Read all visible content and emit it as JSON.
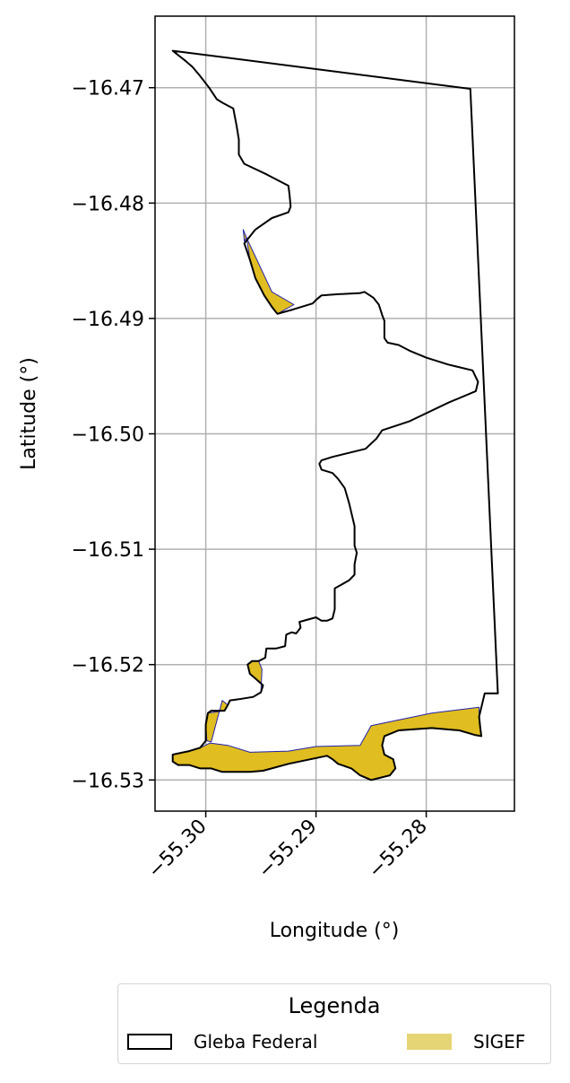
{
  "chart_data": {
    "type": "map",
    "title": "",
    "xlabel": "Longitude (°)",
    "ylabel": "Latitude (°)",
    "xlim": [
      -55.3046,
      -55.272
    ],
    "ylim": [
      -16.5327,
      -16.4638
    ],
    "x_ticks": [
      {
        "value": -55.3,
        "label": "−55.30"
      },
      {
        "value": -55.29,
        "label": "−55.29"
      },
      {
        "value": -55.28,
        "label": "−55.28"
      }
    ],
    "y_ticks": [
      {
        "value": -16.47,
        "label": "−16.47"
      },
      {
        "value": -16.48,
        "label": "−16.48"
      },
      {
        "value": -16.49,
        "label": "−16.49"
      },
      {
        "value": -16.5,
        "label": "−16.50"
      },
      {
        "value": -16.51,
        "label": "−16.51"
      },
      {
        "value": -16.52,
        "label": "−16.52"
      },
      {
        "value": -16.53,
        "label": "−16.53"
      }
    ],
    "grid": true,
    "legend": {
      "title": "Legenda",
      "placement": "bottom",
      "entries": [
        {
          "label": "Gleba Federal",
          "style": "outline",
          "color": "#000000"
        },
        {
          "label": "SIGEF",
          "style": "fill",
          "color": "#e6d574"
        }
      ]
    },
    "layers": [
      {
        "name": "Gleba Federal",
        "kind": "outline",
        "stroke": "#000000",
        "coordinates": [
          [
            -55.303,
            -16.4668
          ],
          [
            -55.276,
            -16.4701
          ],
          [
            -55.2735,
            -16.5225
          ],
          [
            -55.2747,
            -16.5225
          ],
          [
            -55.275,
            -16.5237
          ],
          [
            -55.2752,
            -16.5245
          ],
          [
            -55.2751,
            -16.5255
          ],
          [
            -55.275,
            -16.5262
          ],
          [
            -55.2756,
            -16.5261
          ],
          [
            -55.277,
            -16.5257
          ],
          [
            -55.2795,
            -16.5255
          ],
          [
            -55.2825,
            -16.5257
          ],
          [
            -55.2838,
            -16.5262
          ],
          [
            -55.284,
            -16.527
          ],
          [
            -55.2838,
            -16.5278
          ],
          [
            -55.283,
            -16.5282
          ],
          [
            -55.2828,
            -16.529
          ],
          [
            -55.2833,
            -16.5296
          ],
          [
            -55.285,
            -16.53
          ],
          [
            -55.286,
            -16.5296
          ],
          [
            -55.2868,
            -16.529
          ],
          [
            -55.288,
            -16.5286
          ],
          [
            -55.2885,
            -16.5282
          ],
          [
            -55.289,
            -16.5279
          ],
          [
            -55.2925,
            -16.5286
          ],
          [
            -55.2948,
            -16.5292
          ],
          [
            -55.296,
            -16.5293
          ],
          [
            -55.2985,
            -16.5293
          ],
          [
            -55.2995,
            -16.529
          ],
          [
            -55.3005,
            -16.529
          ],
          [
            -55.3015,
            -16.5287
          ],
          [
            -55.3025,
            -16.5287
          ],
          [
            -55.303,
            -16.5284
          ],
          [
            -55.303,
            -16.5278
          ],
          [
            -55.302,
            -16.5276
          ],
          [
            -55.3015,
            -16.5275
          ],
          [
            -55.3005,
            -16.5272
          ],
          [
            -55.3,
            -16.5266
          ],
          [
            -55.3,
            -16.5252
          ],
          [
            -55.2998,
            -16.5242
          ],
          [
            -55.2995,
            -16.524
          ],
          [
            -55.2983,
            -16.524
          ],
          [
            -55.298,
            -16.5235
          ],
          [
            -55.2978,
            -16.5231
          ],
          [
            -55.297,
            -16.523
          ],
          [
            -55.2957,
            -16.5228
          ],
          [
            -55.295,
            -16.5224
          ],
          [
            -55.2948,
            -16.5218
          ],
          [
            -55.2955,
            -16.5212
          ],
          [
            -55.296,
            -16.5208
          ],
          [
            -55.2962,
            -16.52
          ],
          [
            -55.2958,
            -16.5197
          ],
          [
            -55.2952,
            -16.5197
          ],
          [
            -55.2946,
            -16.5194
          ],
          [
            -55.2945,
            -16.5186
          ],
          [
            -55.2936,
            -16.5186
          ],
          [
            -55.2928,
            -16.5184
          ],
          [
            -55.2927,
            -16.5174
          ],
          [
            -55.2922,
            -16.5172
          ],
          [
            -55.2918,
            -16.5173
          ],
          [
            -55.2914,
            -16.5168
          ],
          [
            -55.2915,
            -16.5163
          ],
          [
            -55.29,
            -16.5159
          ],
          [
            -55.2895,
            -16.5162
          ],
          [
            -55.289,
            -16.5162
          ],
          [
            -55.2885,
            -16.516
          ],
          [
            -55.2883,
            -16.5152
          ],
          [
            -55.2883,
            -16.5134
          ],
          [
            -55.287,
            -16.5127
          ],
          [
            -55.2865,
            -16.5122
          ],
          [
            -55.2865,
            -16.5113
          ],
          [
            -55.2863,
            -16.5103
          ],
          [
            -55.2865,
            -16.5097
          ],
          [
            -55.2865,
            -16.508
          ],
          [
            -55.287,
            -16.506
          ],
          [
            -55.2874,
            -16.5047
          ],
          [
            -55.288,
            -16.5039
          ],
          [
            -55.2885,
            -16.5034
          ],
          [
            -55.2895,
            -16.5031
          ],
          [
            -55.2897,
            -16.5026
          ],
          [
            -55.2895,
            -16.5023
          ],
          [
            -55.2885,
            -16.502
          ],
          [
            -55.2855,
            -16.5013
          ],
          [
            -55.2845,
            -16.5004
          ],
          [
            -55.284,
            -16.4997
          ],
          [
            -55.2815,
            -16.4989
          ],
          [
            -55.278,
            -16.4973
          ],
          [
            -55.2755,
            -16.4963
          ],
          [
            -55.2753,
            -16.4955
          ],
          [
            -55.2758,
            -16.4945
          ],
          [
            -55.278,
            -16.494
          ],
          [
            -55.28,
            -16.4934
          ],
          [
            -55.2815,
            -16.4928
          ],
          [
            -55.2825,
            -16.4923
          ],
          [
            -55.2835,
            -16.4921
          ],
          [
            -55.2838,
            -16.4917
          ],
          [
            -55.2838,
            -16.4902
          ],
          [
            -55.284,
            -16.4897
          ],
          [
            -55.2843,
            -16.4888
          ],
          [
            -55.2848,
            -16.4882
          ],
          [
            -55.2856,
            -16.4877
          ],
          [
            -55.286,
            -16.4878
          ],
          [
            -55.288,
            -16.4879
          ],
          [
            -55.2895,
            -16.488
          ],
          [
            -55.29,
            -16.4884
          ],
          [
            -55.2903,
            -16.4887
          ],
          [
            -55.292,
            -16.4892
          ],
          [
            -55.2935,
            -16.4896
          ],
          [
            -55.294,
            -16.489
          ],
          [
            -55.2947,
            -16.488
          ],
          [
            -55.2955,
            -16.4865
          ],
          [
            -55.296,
            -16.4849
          ],
          [
            -55.2965,
            -16.4835
          ],
          [
            -55.2955,
            -16.4823
          ],
          [
            -55.294,
            -16.4813
          ],
          [
            -55.2925,
            -16.4808
          ],
          [
            -55.2923,
            -16.4803
          ],
          [
            -55.2924,
            -16.4793
          ],
          [
            -55.2925,
            -16.4785
          ],
          [
            -55.2945,
            -16.4775
          ],
          [
            -55.2965,
            -16.4766
          ],
          [
            -55.297,
            -16.4758
          ],
          [
            -55.297,
            -16.4745
          ],
          [
            -55.2972,
            -16.4733
          ],
          [
            -55.2975,
            -16.4718
          ],
          [
            -55.2985,
            -16.4713
          ],
          [
            -55.299,
            -16.471
          ],
          [
            -55.2997,
            -16.47
          ],
          [
            -55.3005,
            -16.469
          ],
          [
            -55.3012,
            -16.4682
          ],
          [
            -55.3018,
            -16.4677
          ],
          [
            -55.303,
            -16.4668
          ]
        ]
      },
      {
        "name": "SIGEF",
        "kind": "fill",
        "fill": "#e0bd20",
        "stroke": "#2222aa",
        "polygons": [
          [
            [
              -55.2963,
              -16.483
            ],
            [
              -55.294,
              -16.4877
            ],
            [
              -55.292,
              -16.4888
            ],
            [
              -55.2935,
              -16.4896
            ],
            [
              -55.2947,
              -16.488
            ],
            [
              -55.2955,
              -16.4865
            ],
            [
              -55.296,
              -16.4849
            ]
          ],
          [
            [
              -55.2966,
              -16.4823
            ],
            [
              -55.2963,
              -16.483
            ],
            [
              -55.2965,
              -16.4833
            ]
          ],
          [
            [
              -55.295,
              -16.5224
            ],
            [
              -55.2948,
              -16.5218
            ],
            [
              -55.2955,
              -16.5212
            ],
            [
              -55.296,
              -16.5208
            ],
            [
              -55.2962,
              -16.52
            ],
            [
              -55.2958,
              -16.5197
            ],
            [
              -55.2952,
              -16.5197
            ],
            [
              -55.2949,
              -16.5204
            ]
          ],
          [
            [
              -55.2752,
              -16.5237
            ],
            [
              -55.2795,
              -16.5242
            ],
            [
              -55.2825,
              -16.5248
            ],
            [
              -55.285,
              -16.5253
            ],
            [
              -55.286,
              -16.527
            ],
            [
              -55.29,
              -16.5271
            ],
            [
              -55.2925,
              -16.5275
            ],
            [
              -55.296,
              -16.5276
            ],
            [
              -55.298,
              -16.527
            ],
            [
              -55.2996,
              -16.5268
            ],
            [
              -55.3005,
              -16.5272
            ],
            [
              -55.302,
              -16.5276
            ],
            [
              -55.303,
              -16.5278
            ],
            [
              -55.303,
              -16.5284
            ],
            [
              -55.3025,
              -16.5287
            ],
            [
              -55.3015,
              -16.5287
            ],
            [
              -55.3005,
              -16.529
            ],
            [
              -55.2995,
              -16.529
            ],
            [
              -55.2985,
              -16.5293
            ],
            [
              -55.296,
              -16.5293
            ],
            [
              -55.2948,
              -16.5292
            ],
            [
              -55.2925,
              -16.5286
            ],
            [
              -55.289,
              -16.5279
            ],
            [
              -55.2885,
              -16.5282
            ],
            [
              -55.288,
              -16.5286
            ],
            [
              -55.2868,
              -16.529
            ],
            [
              -55.286,
              -16.5296
            ],
            [
              -55.285,
              -16.53
            ],
            [
              -55.2833,
              -16.5296
            ],
            [
              -55.2828,
              -16.529
            ],
            [
              -55.283,
              -16.5282
            ],
            [
              -55.2838,
              -16.5278
            ],
            [
              -55.284,
              -16.527
            ],
            [
              -55.2838,
              -16.5262
            ],
            [
              -55.2825,
              -16.5257
            ],
            [
              -55.2795,
              -16.5255
            ],
            [
              -55.277,
              -16.5257
            ],
            [
              -55.2756,
              -16.5261
            ],
            [
              -55.275,
              -16.5262
            ],
            [
              -55.2751,
              -16.5255
            ],
            [
              -55.2752,
              -16.5245
            ]
          ],
          [
            [
              -55.2998,
              -16.5242
            ],
            [
              -55.2983,
              -16.524
            ],
            [
              -55.298,
              -16.5235
            ],
            [
              -55.2985,
              -16.5231
            ],
            [
              -55.2995,
              -16.5267
            ],
            [
              -55.2999,
              -16.5266
            ],
            [
              -55.3,
              -16.5252
            ]
          ]
        ]
      }
    ]
  }
}
